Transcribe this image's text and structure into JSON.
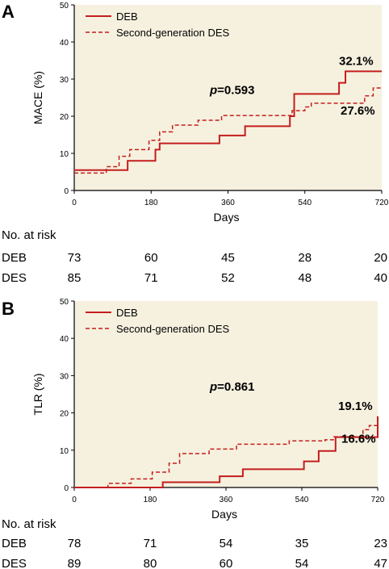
{
  "chart_data": [
    {
      "panel_label": "A",
      "type": "line",
      "step": true,
      "ylabel": "MACE (%)",
      "xlabel": "Days",
      "xlim": [
        0,
        720
      ],
      "ylim": [
        0,
        50
      ],
      "xticks": [
        0,
        180,
        360,
        540,
        720
      ],
      "yticks": [
        0,
        10,
        20,
        30,
        40,
        50
      ],
      "legend_position": "top-left",
      "annotation": "p=0.593",
      "end_labels": [
        "32.1%",
        "27.6%"
      ],
      "colors": {
        "background": "#f6f1df",
        "series": "#c41e1e"
      },
      "series": [
        {
          "name": "DEB",
          "line_style": "solid",
          "x": [
            0,
            105,
            125,
            190,
            200,
            340,
            400,
            505,
            515,
            620,
            635,
            720
          ],
          "y": [
            5.5,
            5.5,
            8,
            11,
            12.7,
            14.8,
            17.3,
            20,
            26,
            29,
            32.1,
            32.1
          ]
        },
        {
          "name": "Second-generation DES",
          "line_style": "dashed",
          "x": [
            0,
            25,
            75,
            105,
            130,
            175,
            200,
            230,
            290,
            345,
            510,
            540,
            555,
            680,
            700,
            720
          ],
          "y": [
            4.7,
            4.7,
            6.4,
            9.2,
            11,
            13.5,
            15.8,
            17.6,
            18.9,
            20.2,
            21.5,
            22.5,
            23.5,
            25.5,
            27.6,
            27.6
          ]
        }
      ],
      "risk_table": {
        "header": "No. at risk",
        "timepoints": [
          0,
          180,
          360,
          540,
          720
        ],
        "rows": [
          {
            "label": "DEB",
            "values": [
              "73",
              "60",
              "45",
              "28",
              "20"
            ]
          },
          {
            "label": "DES",
            "values": [
              "85",
              "71",
              "52",
              "48",
              "40"
            ]
          }
        ]
      }
    },
    {
      "panel_label": "B",
      "type": "line",
      "step": true,
      "ylabel": "TLR (%)",
      "xlabel": "Days",
      "xlim": [
        0,
        720
      ],
      "ylim": [
        0,
        50
      ],
      "xticks": [
        0,
        180,
        360,
        540,
        720
      ],
      "yticks": [
        0,
        10,
        20,
        30,
        40,
        50
      ],
      "legend_position": "top-left",
      "annotation": "p=0.861",
      "end_labels": [
        "19.1%",
        "16.6%"
      ],
      "colors": {
        "background": "#f6f1df",
        "series": "#c41e1e"
      },
      "series": [
        {
          "name": "DEB",
          "line_style": "solid",
          "x": [
            0,
            205,
            210,
            345,
            400,
            545,
            580,
            620,
            720
          ],
          "y": [
            0,
            0,
            1.4,
            3,
            4.9,
            7,
            9.8,
            13.5,
            19.1
          ]
        },
        {
          "name": "Second-generation DES",
          "line_style": "dashed",
          "x": [
            0,
            80,
            135,
            185,
            225,
            250,
            320,
            385,
            510,
            595,
            615,
            685,
            700,
            720
          ],
          "y": [
            0,
            1.1,
            2.3,
            4.1,
            6.5,
            9.1,
            10.3,
            11.6,
            12.5,
            12.8,
            13.6,
            15.5,
            16.6,
            16.6
          ]
        }
      ],
      "risk_table": {
        "header": "No. at risk",
        "timepoints": [
          0,
          180,
          360,
          540,
          720
        ],
        "rows": [
          {
            "label": "DEB",
            "values": [
              "78",
              "71",
              "54",
              "35",
              "23"
            ]
          },
          {
            "label": "DES",
            "values": [
              "89",
              "80",
              "60",
              "54",
              "47"
            ]
          }
        ]
      }
    }
  ]
}
